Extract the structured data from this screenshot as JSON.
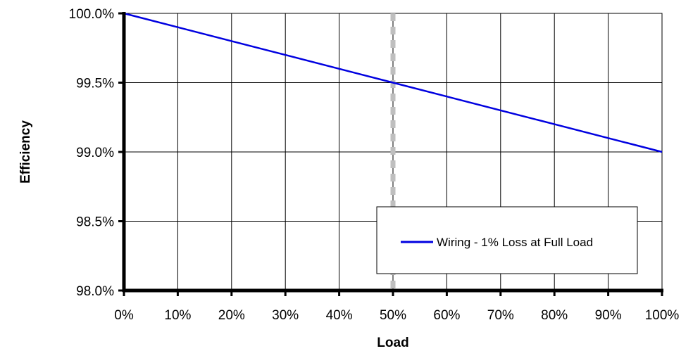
{
  "chart_data": {
    "type": "line",
    "xlabel": "Load",
    "ylabel": "Efficiency",
    "xlim": [
      0,
      100
    ],
    "ylim": [
      98.0,
      100.0
    ],
    "x_ticks": [
      0,
      10,
      20,
      30,
      40,
      50,
      60,
      70,
      80,
      90,
      100
    ],
    "x_tick_labels": [
      "0%",
      "10%",
      "20%",
      "30%",
      "40%",
      "50%",
      "60%",
      "70%",
      "80%",
      "90%",
      "100%"
    ],
    "y_ticks": [
      98.0,
      98.5,
      99.0,
      99.5,
      100.0
    ],
    "y_tick_labels": [
      "98.0%",
      "98.5%",
      "99.0%",
      "99.5%",
      "100.0%"
    ],
    "grid": true,
    "legend_position": "bottom-right",
    "series": [
      {
        "name": "Wiring - 1% Loss at Full Load",
        "color": "#0000e0",
        "x": [
          0,
          10,
          20,
          30,
          40,
          50,
          60,
          70,
          80,
          90,
          100
        ],
        "y": [
          100.0,
          99.9,
          99.8,
          99.7,
          99.6,
          99.5,
          99.4,
          99.3,
          99.2,
          99.1,
          99.0
        ]
      }
    ],
    "reference_line": {
      "x": 50,
      "style": "dashed",
      "color": "#bfbfbf"
    }
  }
}
